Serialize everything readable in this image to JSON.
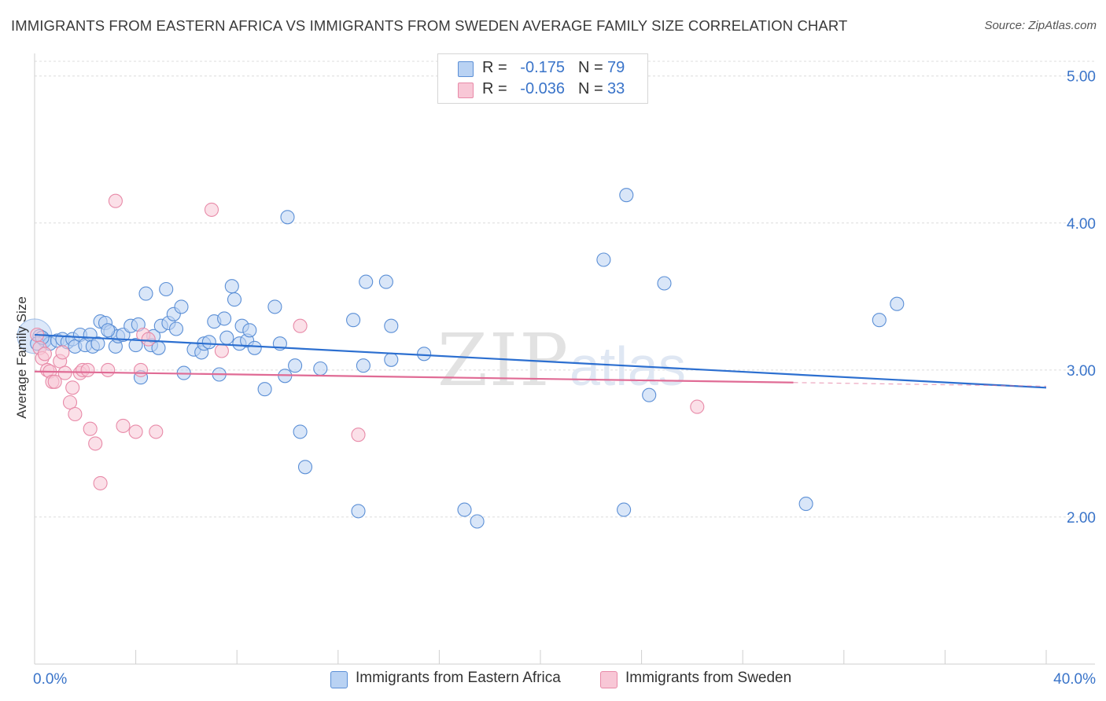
{
  "title": "IMMIGRANTS FROM EASTERN AFRICA VS IMMIGRANTS FROM SWEDEN AVERAGE FAMILY SIZE CORRELATION CHART",
  "source": "Source: ZipAtlas.com",
  "watermark": {
    "zip": "ZIP",
    "atlas": "atlas"
  },
  "stats": [
    {
      "r_label": "R =",
      "r_value": "-0.175",
      "n_label": "N =",
      "n_value": "79"
    },
    {
      "r_label": "R =",
      "r_value": "-0.036",
      "n_label": "N =",
      "n_value": "33"
    }
  ],
  "legend": [
    "Immigrants from Eastern Africa",
    "Immigrants from Sweden"
  ],
  "colors": {
    "blue_fill": "#b9d2f3",
    "blue_stroke": "#5b8fd6",
    "blue_line": "#2c6fd0",
    "pink_fill": "#f8c7d6",
    "pink_stroke": "#e88aa8",
    "pink_line": "#e06b95",
    "axis_text": "#3a74c9",
    "grid": "#dcdcdc"
  },
  "chart_data": {
    "type": "scatter",
    "xlabel": "",
    "ylabel": "Average Family Size",
    "xlim": [
      0,
      40
    ],
    "ylim": [
      1.0,
      5.1
    ],
    "x_tick_labels": [
      {
        "value": 0,
        "label": "0.0%"
      },
      {
        "value": 40,
        "label": "40.0%"
      }
    ],
    "x_minor_ticks": [
      4,
      8,
      12,
      16,
      20,
      24,
      28,
      32,
      36,
      40
    ],
    "y_ticks": [
      {
        "value": 5.0,
        "label": "5.00"
      },
      {
        "value": 4.0,
        "label": "4.00"
      },
      {
        "value": 3.0,
        "label": "3.00"
      },
      {
        "value": 2.0,
        "label": "2.00"
      }
    ],
    "grid": true,
    "legend_position": "bottom-center",
    "series": [
      {
        "name": "Immigrants from Eastern Africa",
        "color": "#5b8fd6",
        "trend": {
          "x0": 0,
          "y0": 3.24,
          "x1": 40,
          "y1": 2.88,
          "dashed_from": null
        },
        "points": [
          [
            0.2,
            3.23
          ],
          [
            0.4,
            3.2
          ],
          [
            0.6,
            3.18
          ],
          [
            0.9,
            3.2
          ],
          [
            1.1,
            3.21
          ],
          [
            1.3,
            3.19
          ],
          [
            1.5,
            3.21
          ],
          [
            1.6,
            3.16
          ],
          [
            1.8,
            3.24
          ],
          [
            2.0,
            3.17
          ],
          [
            2.2,
            3.24
          ],
          [
            2.3,
            3.16
          ],
          [
            2.5,
            3.18
          ],
          [
            2.6,
            3.33
          ],
          [
            2.8,
            3.32
          ],
          [
            3.0,
            3.26
          ],
          [
            3.2,
            3.16
          ],
          [
            3.3,
            3.23
          ],
          [
            3.5,
            3.24
          ],
          [
            3.8,
            3.3
          ],
          [
            4.0,
            3.17
          ],
          [
            4.1,
            3.31
          ],
          [
            4.2,
            2.95
          ],
          [
            4.4,
            3.52
          ],
          [
            4.6,
            3.17
          ],
          [
            4.7,
            3.23
          ],
          [
            4.9,
            3.15
          ],
          [
            5.0,
            3.3
          ],
          [
            5.2,
            3.55
          ],
          [
            5.3,
            3.32
          ],
          [
            5.5,
            3.38
          ],
          [
            5.6,
            3.28
          ],
          [
            5.8,
            3.43
          ],
          [
            5.9,
            2.98
          ],
          [
            6.3,
            3.14
          ],
          [
            6.6,
            3.12
          ],
          [
            6.7,
            3.18
          ],
          [
            6.9,
            3.19
          ],
          [
            7.1,
            3.33
          ],
          [
            7.3,
            2.97
          ],
          [
            7.5,
            3.35
          ],
          [
            7.6,
            3.22
          ],
          [
            7.8,
            3.57
          ],
          [
            7.9,
            3.48
          ],
          [
            8.1,
            3.18
          ],
          [
            8.2,
            3.3
          ],
          [
            8.4,
            3.2
          ],
          [
            8.5,
            3.27
          ],
          [
            8.7,
            3.15
          ],
          [
            9.1,
            2.87
          ],
          [
            9.5,
            3.43
          ],
          [
            9.7,
            3.18
          ],
          [
            9.9,
            2.96
          ],
          [
            10.0,
            4.04
          ],
          [
            10.3,
            3.03
          ],
          [
            10.5,
            2.58
          ],
          [
            10.7,
            2.34
          ],
          [
            11.3,
            3.01
          ],
          [
            12.6,
            3.34
          ],
          [
            12.8,
            2.04
          ],
          [
            13.0,
            3.03
          ],
          [
            13.1,
            3.6
          ],
          [
            13.9,
            3.6
          ],
          [
            14.1,
            3.3
          ],
          [
            14.1,
            3.07
          ],
          [
            15.4,
            3.11
          ],
          [
            17.0,
            2.05
          ],
          [
            17.5,
            1.97
          ],
          [
            22.5,
            3.75
          ],
          [
            23.3,
            2.05
          ],
          [
            23.4,
            4.19
          ],
          [
            24.3,
            2.83
          ],
          [
            24.9,
            3.59
          ],
          [
            30.5,
            2.09
          ],
          [
            33.4,
            3.34
          ],
          [
            34.1,
            3.45
          ],
          [
            0.1,
            3.18
          ],
          [
            0.3,
            3.22
          ],
          [
            2.9,
            3.27
          ]
        ]
      },
      {
        "name": "Immigrants from Sweden",
        "color": "#e88aa8",
        "trend": {
          "x0": 0,
          "y0": 2.99,
          "x1": 40,
          "y1": 2.89,
          "dashed_from": 30
        },
        "points": [
          [
            0.1,
            3.24
          ],
          [
            0.2,
            3.15
          ],
          [
            0.3,
            3.08
          ],
          [
            0.4,
            3.11
          ],
          [
            0.5,
            3.0
          ],
          [
            0.6,
            2.99
          ],
          [
            0.7,
            2.92
          ],
          [
            0.8,
            2.92
          ],
          [
            1.0,
            3.06
          ],
          [
            1.1,
            3.12
          ],
          [
            1.2,
            2.98
          ],
          [
            1.4,
            2.78
          ],
          [
            1.5,
            2.88
          ],
          [
            1.6,
            2.7
          ],
          [
            1.8,
            2.98
          ],
          [
            1.9,
            3.0
          ],
          [
            2.1,
            3.0
          ],
          [
            2.2,
            2.6
          ],
          [
            2.4,
            2.5
          ],
          [
            2.6,
            2.23
          ],
          [
            2.9,
            3.0
          ],
          [
            3.2,
            4.15
          ],
          [
            3.5,
            2.62
          ],
          [
            4.0,
            2.58
          ],
          [
            4.2,
            3.0
          ],
          [
            4.3,
            3.24
          ],
          [
            4.5,
            3.21
          ],
          [
            4.8,
            2.58
          ],
          [
            7.0,
            4.09
          ],
          [
            7.4,
            3.13
          ],
          [
            10.5,
            3.3
          ],
          [
            12.8,
            2.56
          ],
          [
            26.2,
            2.75
          ]
        ]
      }
    ]
  }
}
